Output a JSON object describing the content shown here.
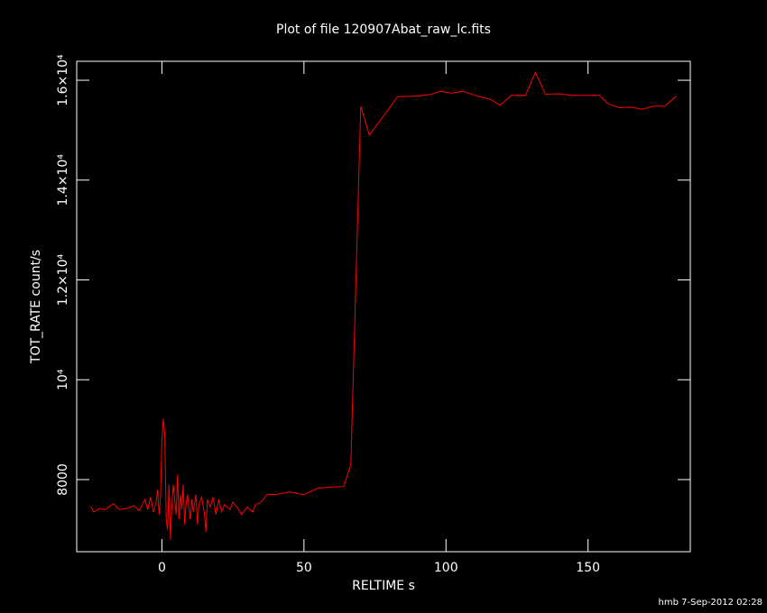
{
  "chart_data": {
    "type": "line",
    "title": "Plot of file 120907Abat_raw_lc.fits",
    "x_label": "RELTIME  s",
    "y_label": "TOT_RATE  count/s",
    "footer": "hmb  7-Sep-2012 02:28",
    "xlim": [
      -30,
      186
    ],
    "ylim": [
      6555,
      16380
    ],
    "xticks": [
      0,
      50,
      100,
      150
    ],
    "yticks": [
      8000,
      {
        "value": 10000,
        "label": "10⁴"
      },
      {
        "value": 12000,
        "label": "1.2×10⁴"
      },
      {
        "value": 14000,
        "label": "1.4×10⁴"
      },
      {
        "value": 16000,
        "label": "1.6×10⁴"
      }
    ],
    "series": [
      {
        "color": "#ff0000",
        "x": [
          -25,
          -24,
          -22,
          -20,
          -17,
          -15,
          -12,
          -10,
          -8,
          -6,
          -5,
          -4,
          -3,
          -2,
          -1.5,
          -1,
          -0.5,
          0,
          0.5,
          1,
          1.5,
          2,
          2.5,
          3,
          3.5,
          4,
          5,
          5.5,
          6,
          6.5,
          7,
          7.5,
          8,
          8.5,
          9,
          10,
          10.5,
          11,
          12,
          12.5,
          13,
          14,
          15,
          15.5,
          16,
          17,
          18,
          19,
          20,
          21,
          22,
          24,
          25,
          27,
          28,
          30,
          32,
          33,
          35,
          37,
          40,
          45,
          50,
          55,
          60,
          64,
          66.5,
          70,
          73,
          83,
          88,
          92,
          95,
          98,
          102,
          106,
          110,
          116,
          119,
          123,
          128,
          131.5,
          135,
          140,
          144,
          150,
          154,
          157,
          161,
          165,
          169,
          173,
          177,
          181
        ],
        "values": [
          7460,
          7350,
          7420,
          7400,
          7520,
          7400,
          7430,
          7480,
          7380,
          7600,
          7400,
          7650,
          7350,
          7550,
          7800,
          7300,
          7650,
          8800,
          9220,
          8900,
          7200,
          7000,
          7900,
          6800,
          7500,
          7900,
          7300,
          8100,
          7200,
          7700,
          7400,
          7900,
          7100,
          7500,
          7700,
          7200,
          7600,
          7350,
          7700,
          7100,
          7500,
          7650,
          7300,
          6950,
          7600,
          7450,
          7650,
          7300,
          7600,
          7350,
          7500,
          7400,
          7550,
          7400,
          7300,
          7450,
          7350,
          7500,
          7550,
          7700,
          7700,
          7750,
          7700,
          7830,
          7850,
          7860,
          8300,
          15480,
          14900,
          15670,
          15680,
          15700,
          15720,
          15780,
          15740,
          15780,
          15700,
          15610,
          15500,
          15700,
          15700,
          16160,
          15720,
          15730,
          15700,
          15700,
          15700,
          15530,
          15450,
          15460,
          15420,
          15480,
          15480,
          15680
        ]
      }
    ]
  }
}
